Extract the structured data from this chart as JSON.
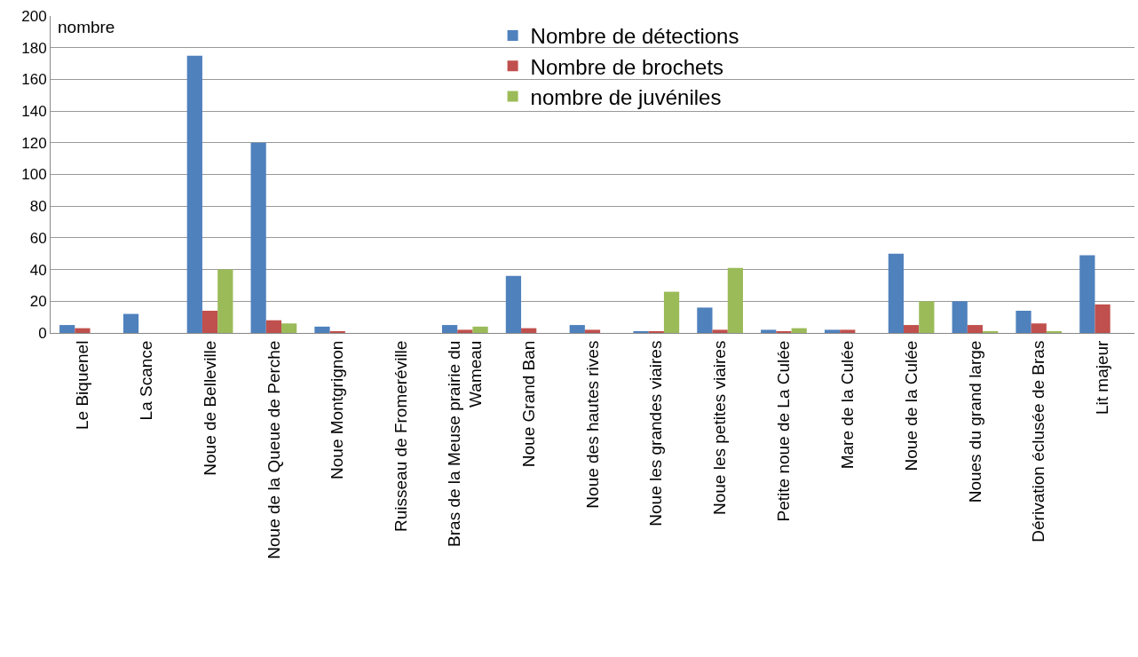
{
  "chart_data": {
    "type": "bar",
    "ylabel": "nombre",
    "categories": [
      "Le Biquenel",
      "La Scance",
      "Noue de Belleville",
      "Noue de la Queue de Perche",
      "Noue Montgrignon",
      "Ruisseau de Fromeréville",
      "Bras de la Meuse prairie du Wameau",
      "Noue Grand Ban",
      "Noue des hautes rives",
      "Noue les grandes viaires",
      "Noue les petites viaires",
      "Petite noue de La Culée",
      "Mare de la Culée",
      "Noue de la Culée",
      "Noues du grand large",
      "Dérivation éclusée de Bras",
      "Lit majeur"
    ],
    "series": [
      {
        "name": "Nombre de détections",
        "color": "#4f81bd",
        "values": [
          5,
          12,
          175,
          120,
          4,
          0,
          5,
          36,
          5,
          1,
          16,
          2,
          2,
          50,
          20,
          14,
          49
        ]
      },
      {
        "name": "Nombre de brochets",
        "color": "#c0504d",
        "values": [
          3,
          0,
          14,
          8,
          1,
          0,
          2,
          3,
          2,
          1,
          2,
          1,
          2,
          5,
          5,
          6,
          18
        ]
      },
      {
        "name": "nombre de juvéniles",
        "color": "#9bbb59",
        "values": [
          0,
          0,
          40,
          6,
          0,
          0,
          4,
          0,
          0,
          26,
          41,
          3,
          0,
          20,
          1,
          1,
          0
        ]
      }
    ],
    "ylim": [
      0,
      200
    ],
    "yticks": [
      0,
      20,
      40,
      60,
      80,
      100,
      120,
      140,
      160,
      180,
      200
    ],
    "grid": "y",
    "legend": "top"
  }
}
